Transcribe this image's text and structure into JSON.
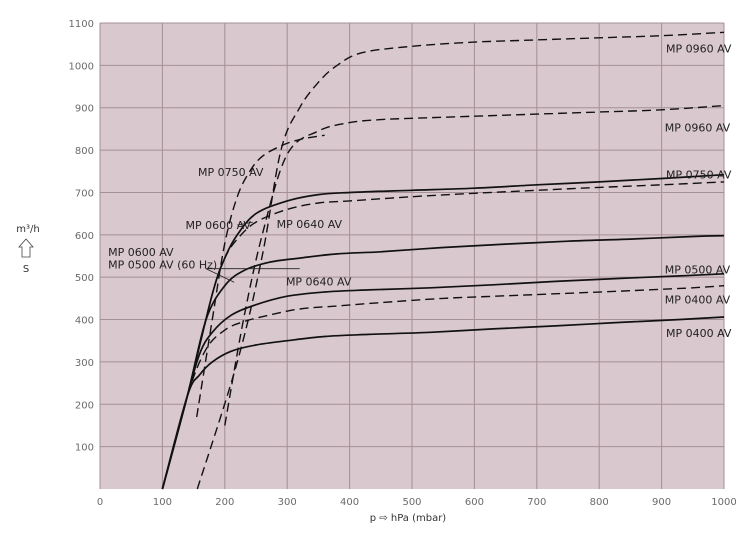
{
  "chart_data": {
    "type": "line",
    "xlabel": "p ⇨ hPa (mbar)",
    "ylabel": "m³/h",
    "ylabel_symbol": "S",
    "xlim": [
      0,
      1000
    ],
    "ylim": [
      0,
      1100
    ],
    "xticks": [
      0,
      100,
      200,
      300,
      400,
      500,
      600,
      700,
      800,
      900,
      1000
    ],
    "yticks": [
      100,
      200,
      300,
      400,
      500,
      600,
      700,
      800,
      900,
      1000,
      1100
    ],
    "grid": true,
    "background": "#d9c8cd",
    "grid_color": "#a58f98",
    "series": [
      {
        "name": "MP 0960 AV",
        "style": "dashed",
        "x": [
          156,
          220,
          260,
          290,
          320,
          350,
          380,
          420,
          500,
          600,
          700,
          800,
          900,
          1000
        ],
        "y": [
          0,
          300,
          550,
          800,
          900,
          960,
          1000,
          1030,
          1045,
          1055,
          1060,
          1065,
          1070,
          1078
        ]
      },
      {
        "name": "MP 0960 AV",
        "style": "dashed",
        "x": [
          200,
          230,
          260,
          300,
          350,
          400,
          450,
          500,
          600,
          700,
          800,
          900,
          1000
        ],
        "y": [
          150,
          400,
          600,
          790,
          845,
          865,
          872,
          875,
          880,
          885,
          890,
          895,
          905
        ]
      },
      {
        "name": "MP 0750 AV",
        "style": "dashed",
        "x": [
          155,
          180,
          200,
          220,
          240,
          260,
          290,
          320,
          360
        ],
        "y": [
          170,
          400,
          580,
          690,
          750,
          785,
          810,
          825,
          835
        ]
      },
      {
        "name": "MP 0750 AV",
        "style": "solid",
        "x": [
          100,
          140,
          180,
          200,
          220,
          250,
          300,
          350,
          400,
          500,
          600,
          700,
          800,
          900,
          1000
        ],
        "y": [
          0,
          220,
          460,
          545,
          600,
          650,
          680,
          695,
          700,
          705,
          710,
          718,
          725,
          733,
          742
        ]
      },
      {
        "name": "MP 0640 AV",
        "style": "dashed",
        "x": [
          100,
          140,
          180,
          200,
          220,
          250,
          300,
          350,
          400,
          500,
          600,
          700,
          800,
          900,
          1000
        ],
        "y": [
          0,
          220,
          460,
          545,
          590,
          630,
          660,
          675,
          680,
          690,
          698,
          705,
          712,
          718,
          725
        ]
      },
      {
        "name": "MP 0600 AV",
        "style": "solid",
        "x": [
          100,
          140,
          170,
          200,
          230,
          270,
          320,
          380,
          450,
          550,
          650,
          750,
          850,
          950,
          1000
        ],
        "y": [
          0,
          220,
          400,
          480,
          515,
          535,
          545,
          555,
          560,
          570,
          578,
          585,
          590,
          596,
          598
        ]
      },
      {
        "name": "MP 0500 AV",
        "style": "solid",
        "x": [
          100,
          140,
          160,
          180,
          210,
          250,
          300,
          360,
          430,
          530,
          630,
          730,
          830,
          930,
          1000
        ],
        "y": [
          0,
          220,
          320,
          370,
          410,
          435,
          455,
          465,
          470,
          475,
          482,
          490,
          497,
          503,
          508
        ]
      },
      {
        "name": "MP 0400 AV",
        "style": "dashed",
        "x": [
          100,
          140,
          170,
          200,
          230,
          270,
          320,
          380,
          450,
          550,
          650,
          750,
          850,
          950,
          1000
        ],
        "y": [
          0,
          220,
          330,
          375,
          395,
          410,
          425,
          432,
          440,
          450,
          456,
          462,
          468,
          475,
          480
        ]
      },
      {
        "name": "MP 0400 AV",
        "style": "solid",
        "x": [
          100,
          140,
          160,
          180,
          210,
          250,
          300,
          360,
          430,
          530,
          630,
          730,
          830,
          930,
          1000
        ],
        "y": [
          0,
          220,
          270,
          300,
          325,
          340,
          350,
          360,
          365,
          370,
          378,
          385,
          393,
          400,
          406
        ]
      }
    ],
    "annotations": [
      {
        "id": "a1",
        "text": "MP 0960 AV",
        "x": 907,
        "y": 1040
      },
      {
        "id": "a2",
        "text": "MP 0960 AV",
        "x": 905,
        "y": 853
      },
      {
        "id": "a3",
        "text": "MP 0750 AV",
        "x": 907,
        "y": 742
      },
      {
        "id": "a4",
        "text": "MP 0500 AV",
        "x": 905,
        "y": 518
      },
      {
        "id": "a5",
        "text": "MP 0400 AV",
        "x": 905,
        "y": 447
      },
      {
        "id": "a6",
        "text": "MP 0400 AV",
        "x": 907,
        "y": 368
      },
      {
        "id": "a7",
        "text": "MP 0750 AV",
        "x": 157,
        "y": 748
      },
      {
        "id": "a8",
        "text": "MP 0600 AV",
        "x": 137,
        "y": 623
      },
      {
        "id": "a9",
        "text": "MP 0640 AV",
        "x": 283,
        "y": 625
      },
      {
        "id": "a10",
        "text": "MP 0600 AV",
        "x": 13,
        "y": 560
      },
      {
        "id": "a11",
        "text": "MP 0500 AV (60 Hz)",
        "x": 13,
        "y": 530
      },
      {
        "id": "a12",
        "text": "MP 0640 AV",
        "x": 298,
        "y": 490
      }
    ]
  }
}
